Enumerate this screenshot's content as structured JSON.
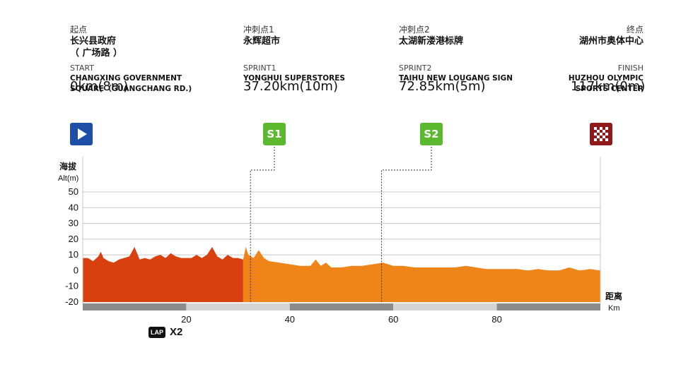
{
  "waypoints": [
    {
      "cn_label": "起点",
      "cn_name": "长兴县政府\n（ 广场路 ）",
      "en_label": "START",
      "en_name": "CHANGXING GOVERNMENT\nSQUARE（GUANGCHANG RD.)",
      "distance": "0km(8m)",
      "icon": "start-play-icon"
    },
    {
      "cn_label": "冲刺点1",
      "cn_name": "永辉超市",
      "en_label": "SPRINT1",
      "en_name": "YONGHUI SUPERSTORES",
      "distance": "37.20km(10m)",
      "icon": "sprint-badge-icon",
      "badge": "S1"
    },
    {
      "cn_label": "冲刺点2",
      "cn_name": "太湖新溇港标牌",
      "en_label": "SPRINT2",
      "en_name": "TAIHU NEW LOUGANG SIGN",
      "distance": "72.85km(5m)",
      "icon": "sprint-badge-icon",
      "badge": "S2"
    },
    {
      "cn_label": "终点",
      "cn_name": "湖州市奥体中心",
      "en_label": "FINISH",
      "en_name": "HUZHOU OLYMPIC\nSPORTS CENTER",
      "distance": "117km(0m)",
      "icon": "checkered-flag-icon"
    }
  ],
  "lap": {
    "badge": "LAP",
    "count": "X2"
  },
  "colors": {
    "loop_fill": "#d9400f",
    "main_fill": "#ef8418",
    "start_icon": "#1d4fa8",
    "sprint_icon": "#5cb82e",
    "finish_icon": "#8e1a1a",
    "gridline": "#c8c8c8"
  },
  "chart_data": {
    "type": "area",
    "ylabel": "海拔\nAlt(m)",
    "xlabel": "距离\nKm",
    "yticks": [
      50,
      40,
      30,
      20,
      10,
      0,
      -10,
      -20
    ],
    "ylim": [
      -20,
      50
    ],
    "xticks": [
      20,
      40,
      60,
      80
    ],
    "xlim": [
      0,
      100
    ],
    "grid": true,
    "sprint_markers_x": [
      32,
      58
    ],
    "series": [
      {
        "segment": "loop",
        "x": [
          0,
          1,
          2,
          3,
          3.5,
          4,
          5,
          6,
          7,
          8,
          9,
          10,
          11,
          12,
          13,
          14,
          15,
          16,
          17,
          18,
          19,
          20,
          21,
          22,
          23,
          24,
          25,
          26,
          27,
          28,
          29,
          30,
          31
        ],
        "values": [
          8,
          8,
          6,
          9,
          12,
          8,
          6,
          5,
          7,
          8,
          9,
          15,
          7,
          8,
          7,
          9,
          10,
          8,
          11,
          9,
          8,
          8,
          8,
          10,
          8,
          10,
          15,
          9,
          7,
          10,
          8,
          8,
          7
        ]
      },
      {
        "segment": "main",
        "x": [
          31,
          31.5,
          32,
          33,
          34,
          35,
          36,
          38,
          40,
          42,
          44,
          45,
          46,
          47,
          48,
          50,
          52,
          54,
          56,
          58,
          60,
          62,
          64,
          66,
          68,
          70,
          72,
          74,
          76,
          78,
          80,
          82,
          84,
          86,
          88,
          90,
          92,
          94,
          96,
          98,
          100
        ],
        "values": [
          7,
          15,
          10,
          8,
          13,
          8,
          6,
          5,
          4,
          3,
          3,
          7,
          3,
          5,
          2,
          2,
          3,
          3,
          4,
          5,
          3,
          3,
          2,
          2,
          2,
          2,
          2,
          3,
          2,
          1,
          1,
          1,
          1,
          0,
          1,
          0,
          0,
          2,
          0,
          1,
          0
        ]
      }
    ]
  }
}
